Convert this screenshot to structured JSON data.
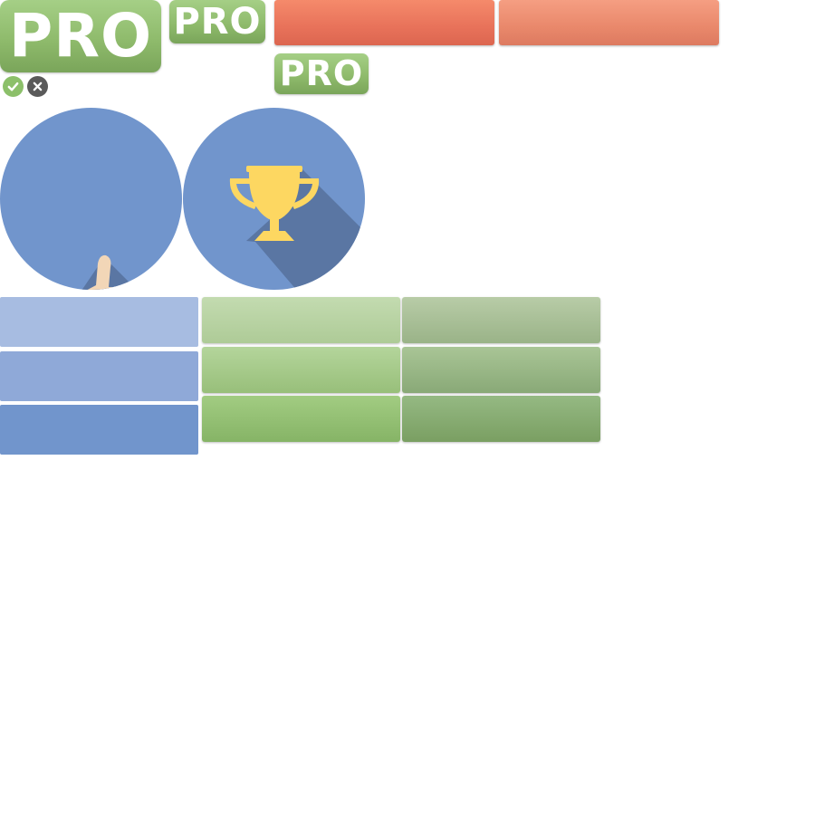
{
  "badges": {
    "large_label": "PRO",
    "medium_label": "PRO",
    "small_label": "PRO",
    "color": "#8fbb6c"
  },
  "icons": {
    "check": "check-icon",
    "close": "close-icon",
    "thumbs_up": "thumbs-up-icon",
    "trophy": "trophy-icon"
  },
  "colors": {
    "red": "#e8725a",
    "blue": "#7195cc",
    "green": "#8fbb6c",
    "gold": "#fdd761",
    "skin": "#f2d6b7"
  }
}
